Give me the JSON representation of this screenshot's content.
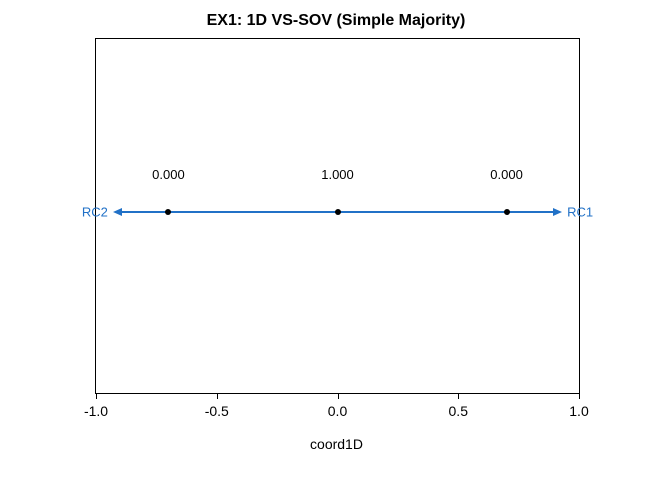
{
  "chart_data": {
    "type": "scatter",
    "title": "EX1: 1D VS-SOV (Simple Majority)",
    "xlabel": "coord1D",
    "ylabel": "",
    "xlim": [
      -1.0,
      1.0
    ],
    "x_ticks": [
      -1.0,
      -0.5,
      0.0,
      0.5,
      1.0
    ],
    "x_tick_labels": [
      "-1.0",
      "-0.5",
      "0.0",
      "0.5",
      "1.0"
    ],
    "grid": false,
    "points": [
      {
        "x": -0.7,
        "value_label": "0.000"
      },
      {
        "x": 0.0,
        "value_label": "1.000"
      },
      {
        "x": 0.7,
        "value_label": "0.000"
      }
    ],
    "arrow": {
      "from": -0.93,
      "to": 0.93,
      "left_label": "RC2",
      "right_label": "RC1",
      "color": "#2171C7"
    },
    "point_color": "#000000",
    "background_color": "#ffffff"
  }
}
